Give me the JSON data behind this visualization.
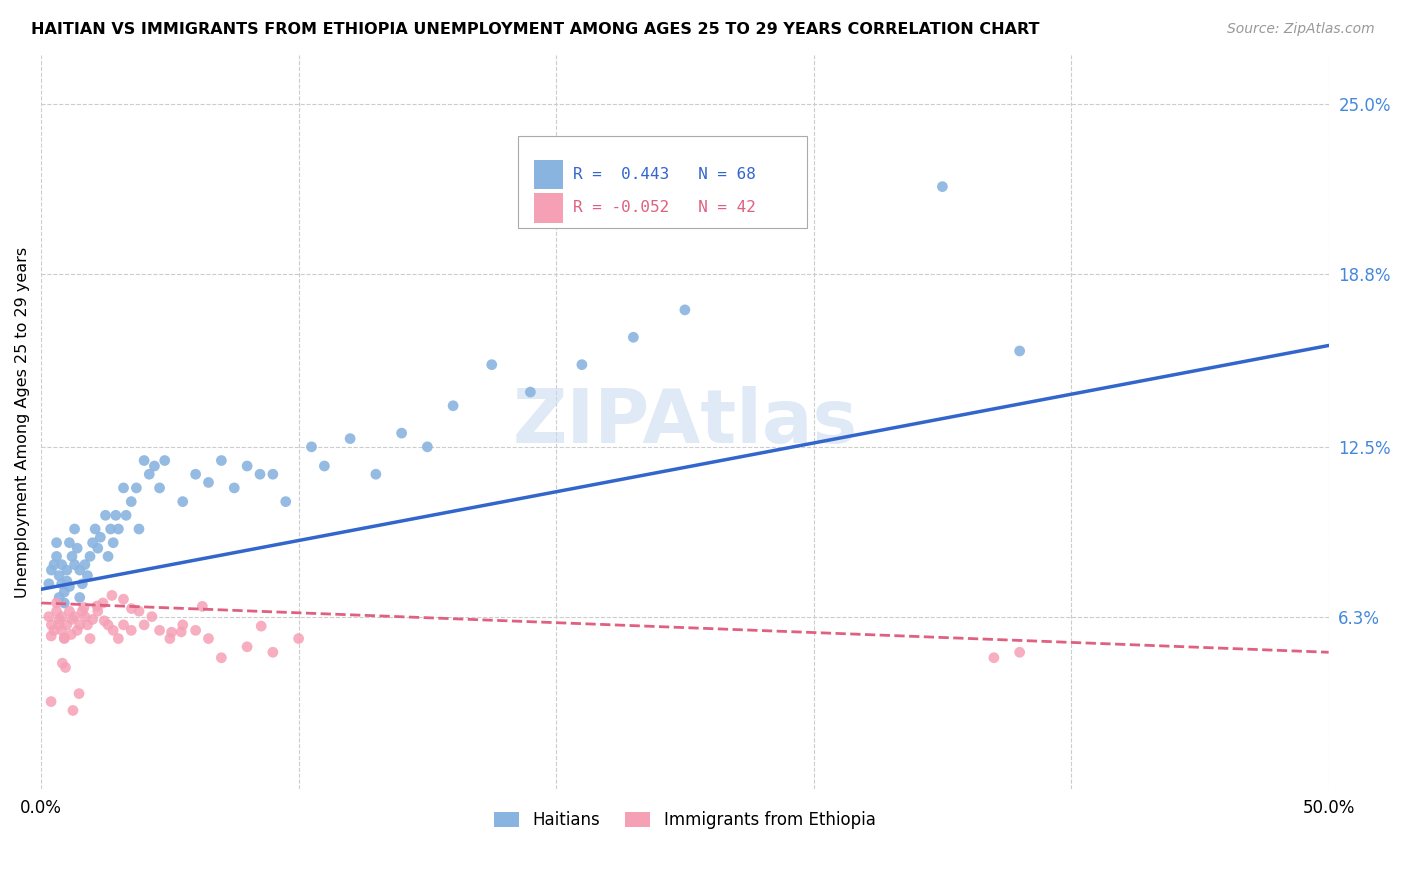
{
  "title": "HAITIAN VS IMMIGRANTS FROM ETHIOPIA UNEMPLOYMENT AMONG AGES 25 TO 29 YEARS CORRELATION CHART",
  "source": "Source: ZipAtlas.com",
  "ylabel": "Unemployment Among Ages 25 to 29 years",
  "xlim": [
    0.0,
    0.5
  ],
  "ylim": [
    0.0,
    0.268
  ],
  "xtick_positions": [
    0.0,
    0.1,
    0.2,
    0.3,
    0.4,
    0.5
  ],
  "ytick_vals_right": [
    0.25,
    0.188,
    0.125,
    0.063
  ],
  "ytick_labels_right": [
    "25.0%",
    "18.8%",
    "12.5%",
    "6.3%"
  ],
  "haitian_color": "#8ab4e0",
  "ethiopia_color": "#f5a0b5",
  "haitian_line_color": "#3366cc",
  "ethiopia_line_color": "#e06080",
  "legend_label1": "Haitians",
  "legend_label2": "Immigrants from Ethiopia",
  "watermark": "ZIPAtlas",
  "haitian_x": [
    0.003,
    0.004,
    0.005,
    0.006,
    0.006,
    0.007,
    0.007,
    0.008,
    0.008,
    0.009,
    0.009,
    0.01,
    0.01,
    0.011,
    0.011,
    0.012,
    0.013,
    0.013,
    0.014,
    0.015,
    0.015,
    0.016,
    0.017,
    0.018,
    0.019,
    0.02,
    0.021,
    0.022,
    0.023,
    0.025,
    0.026,
    0.027,
    0.028,
    0.029,
    0.03,
    0.032,
    0.033,
    0.035,
    0.037,
    0.038,
    0.04,
    0.042,
    0.044,
    0.046,
    0.048,
    0.055,
    0.06,
    0.065,
    0.07,
    0.075,
    0.08,
    0.085,
    0.09,
    0.095,
    0.105,
    0.11,
    0.12,
    0.13,
    0.14,
    0.15,
    0.16,
    0.175,
    0.19,
    0.21,
    0.23,
    0.25,
    0.35,
    0.38
  ],
  "haitian_y": [
    0.075,
    0.08,
    0.082,
    0.085,
    0.09,
    0.07,
    0.078,
    0.075,
    0.082,
    0.068,
    0.072,
    0.076,
    0.08,
    0.074,
    0.09,
    0.085,
    0.082,
    0.095,
    0.088,
    0.07,
    0.08,
    0.075,
    0.082,
    0.078,
    0.085,
    0.09,
    0.095,
    0.088,
    0.092,
    0.1,
    0.085,
    0.095,
    0.09,
    0.1,
    0.095,
    0.11,
    0.1,
    0.105,
    0.11,
    0.095,
    0.12,
    0.115,
    0.118,
    0.11,
    0.12,
    0.105,
    0.115,
    0.112,
    0.12,
    0.11,
    0.118,
    0.115,
    0.115,
    0.105,
    0.125,
    0.118,
    0.128,
    0.115,
    0.13,
    0.125,
    0.14,
    0.155,
    0.145,
    0.155,
    0.165,
    0.175,
    0.22,
    0.16
  ],
  "ethiopia_x": [
    0.003,
    0.004,
    0.005,
    0.006,
    0.006,
    0.007,
    0.007,
    0.008,
    0.008,
    0.009,
    0.01,
    0.011,
    0.012,
    0.013,
    0.014,
    0.015,
    0.016,
    0.017,
    0.018,
    0.019,
    0.02,
    0.022,
    0.024,
    0.026,
    0.028,
    0.03,
    0.032,
    0.035,
    0.038,
    0.04,
    0.043,
    0.046,
    0.05,
    0.055,
    0.06,
    0.065,
    0.07,
    0.08,
    0.09,
    0.1,
    0.37,
    0.38
  ],
  "ethiopia_y": [
    0.063,
    0.06,
    0.058,
    0.065,
    0.068,
    0.062,
    0.06,
    0.063,
    0.058,
    0.055,
    0.06,
    0.065,
    0.062,
    0.063,
    0.058,
    0.06,
    0.065,
    0.063,
    0.06,
    0.055,
    0.062,
    0.065,
    0.068,
    0.06,
    0.058,
    0.055,
    0.06,
    0.058,
    0.065,
    0.06,
    0.063,
    0.058,
    0.055,
    0.06,
    0.058,
    0.055,
    0.048,
    0.052,
    0.05,
    0.055,
    0.048,
    0.05
  ],
  "haitian_line_start_y": 0.073,
  "haitian_line_end_y": 0.162,
  "ethiopia_line_start_y": 0.068,
  "ethiopia_line_end_y": 0.05
}
